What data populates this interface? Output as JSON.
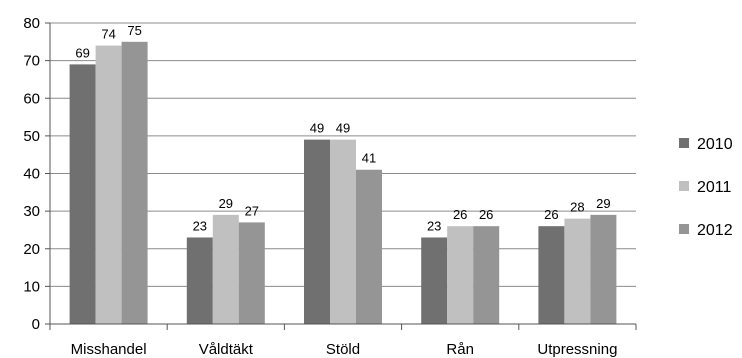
{
  "chart_data": {
    "type": "bar",
    "categories": [
      "Misshandel",
      "Våldtäkt",
      "Stöld",
      "Rån",
      "Utpressning"
    ],
    "series": [
      {
        "name": "2010",
        "values": [
          69,
          23,
          49,
          23,
          26
        ],
        "color": "#707070"
      },
      {
        "name": "2011",
        "values": [
          74,
          29,
          49,
          26,
          28
        ],
        "color": "#c0c0c0"
      },
      {
        "name": "2012",
        "values": [
          75,
          27,
          41,
          26,
          29
        ],
        "color": "#959595"
      }
    ],
    "ylim": [
      0,
      80
    ],
    "yticks": [
      0,
      10,
      20,
      30,
      40,
      50,
      60,
      70,
      80
    ],
    "grid": true,
    "legend_position": "right",
    "data_labels": true
  }
}
